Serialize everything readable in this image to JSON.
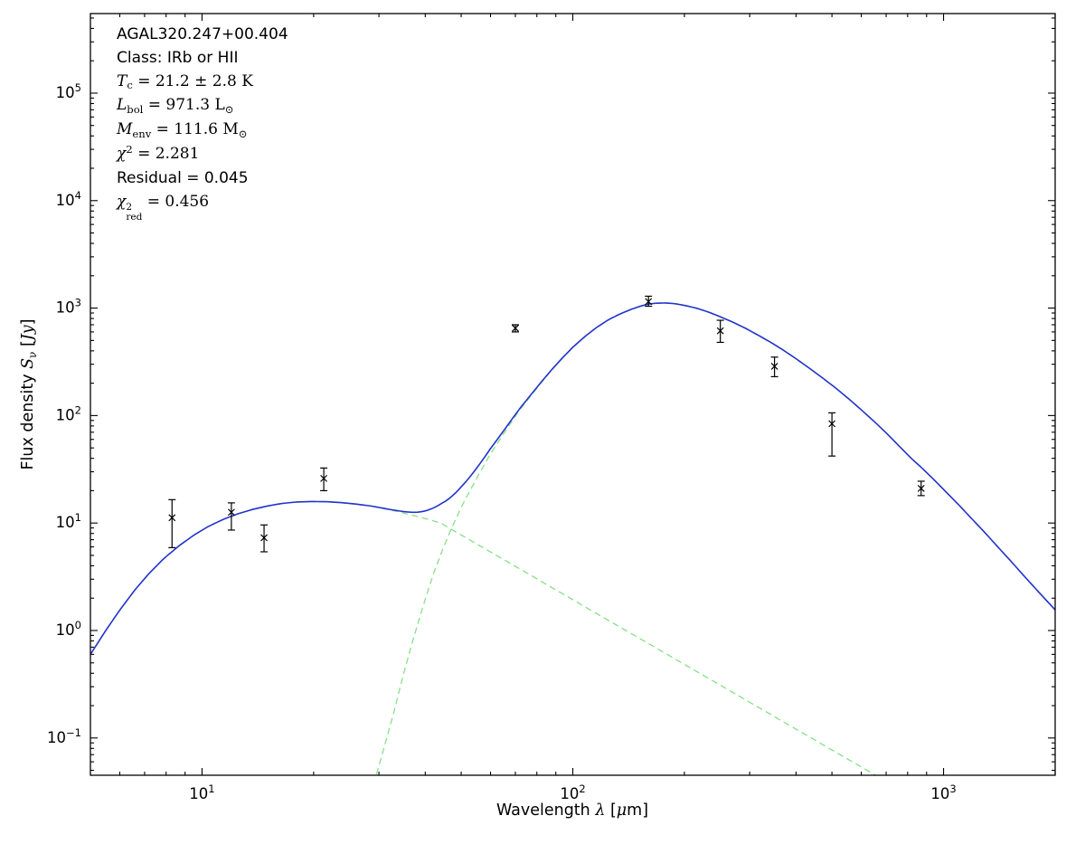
{
  "figure": {
    "background": "#ffffff",
    "frame_color": "#000000"
  },
  "colors": {
    "total_model": "#2233cc",
    "component_model": "#87e087",
    "data_points": "#000000",
    "tick_color": "#000000"
  },
  "annotation": {
    "lines": [
      {
        "name": "source-name",
        "segments": [
          {
            "t": "AGAL320.247+00.404",
            "c": "n"
          }
        ]
      },
      {
        "name": "source-class",
        "segments": [
          {
            "t": "Class: IRb or HII",
            "c": "n"
          }
        ]
      },
      {
        "name": "dust-temperature",
        "segments": [
          {
            "t": "T",
            "c": "i"
          },
          {
            "t": "c",
            "c": "sub"
          },
          {
            "t": " = 21.2 ± 2.8 K",
            "c": "r"
          }
        ]
      },
      {
        "name": "bolometric-luminosity",
        "segments": [
          {
            "t": "L",
            "c": "i"
          },
          {
            "t": "bol",
            "c": "sub"
          },
          {
            "t": " = 971.3 L",
            "c": "r"
          },
          {
            "t": "⊙",
            "c": "sub"
          }
        ]
      },
      {
        "name": "envelope-mass",
        "segments": [
          {
            "t": "M",
            "c": "i"
          },
          {
            "t": "env",
            "c": "sub"
          },
          {
            "t": " = 111.6 M",
            "c": "r"
          },
          {
            "t": "⊙",
            "c": "sub"
          }
        ]
      },
      {
        "name": "chi-squared",
        "segments": [
          {
            "t": "χ",
            "c": "i"
          },
          {
            "t": "2",
            "c": "sup"
          },
          {
            "t": " = 2.281",
            "c": "r"
          }
        ]
      },
      {
        "name": "residual",
        "segments": [
          {
            "t": "Residual = 0.045",
            "c": "n"
          }
        ]
      },
      {
        "name": "chi-squared-reduced",
        "segments": [
          {
            "t": "χ",
            "c": "i"
          },
          {
            "t": "2|red",
            "c": "stack"
          },
          {
            "t": " = 0.456",
            "c": "r"
          }
        ]
      }
    ]
  },
  "chart_data": {
    "type": "line",
    "title": "",
    "xlabel": "Wavelength λ [μm]",
    "ylabel": "Flux density Sν [Jy]",
    "xlabel_segments": [
      {
        "t": "Wavelength ",
        "c": "n"
      },
      {
        "t": "λ",
        "c": "i"
      },
      {
        "t": " [",
        "c": "n"
      },
      {
        "t": "μ",
        "c": "i"
      },
      {
        "t": "m]",
        "c": "n"
      }
    ],
    "ylabel_segments": [
      {
        "t": "Flux density ",
        "c": "n"
      },
      {
        "t": "S",
        "c": "i"
      },
      {
        "t": "ν",
        "c": "sub"
      },
      {
        "t": " [",
        "c": "n"
      },
      {
        "t": "Jy",
        "c": "i"
      },
      {
        "t": "]",
        "c": "n"
      }
    ],
    "xscale": "log",
    "yscale": "log",
    "xlim": [
      5,
      2000
    ],
    "ylim": [
      0.045,
      550000
    ],
    "x_tick_exponents": [
      1,
      2,
      3
    ],
    "y_tick_exponents": [
      -1,
      0,
      1,
      2,
      3,
      4,
      5
    ],
    "grid": false,
    "legend": null,
    "series": [
      {
        "name": "warm-component-model",
        "role": "component",
        "style": "dashed",
        "color": "#87e087",
        "x": [
          5,
          5.5,
          6,
          6.6,
          7.2,
          7.9,
          8.7,
          9.5,
          10.4,
          11.4,
          12.5,
          13.7,
          15,
          16.4,
          18,
          19.7,
          21.6,
          23.7,
          26,
          28.5,
          31,
          34,
          37,
          40.5,
          44,
          48,
          53,
          58,
          64,
          70,
          77,
          85,
          93,
          102,
          112,
          123,
          135,
          148,
          163,
          180,
          200,
          222,
          246,
          272,
          300,
          330,
          365,
          405,
          450,
          500,
          555,
          615,
          660
        ],
        "y": [
          0.6,
          1.0,
          1.55,
          2.4,
          3.4,
          4.7,
          6.2,
          7.7,
          9.3,
          10.8,
          12.2,
          13.4,
          14.4,
          15.2,
          15.7,
          15.85,
          15.8,
          15.5,
          15.0,
          14.4,
          13.6,
          12.7,
          11.8,
          10.9,
          10.0,
          8.4,
          6.9,
          5.75,
          4.73,
          3.95,
          3.27,
          2.68,
          2.24,
          1.86,
          1.54,
          1.28,
          1.06,
          0.884,
          0.729,
          0.597,
          0.484,
          0.393,
          0.32,
          0.262,
          0.215,
          0.178,
          0.145,
          0.118,
          0.0956,
          0.0774,
          0.0628,
          0.0512,
          0.0445
        ]
      },
      {
        "name": "cold-component-model",
        "role": "component",
        "style": "dashed",
        "color": "#87e087",
        "x": [
          28.5,
          30,
          31.5,
          33,
          35,
          37,
          39.5,
          42,
          44.5,
          47,
          50,
          53,
          56,
          60,
          64,
          68,
          72,
          77,
          82,
          88,
          94,
          100,
          108,
          116,
          125,
          134,
          144,
          152,
          160,
          168,
          178,
          188,
          200,
          215,
          232,
          250,
          270,
          292,
          316,
          342,
          370,
          400,
          435,
          470,
          510,
          555,
          600,
          650,
          700,
          755,
          815,
          870,
          940,
          1015,
          1100,
          1190,
          1290,
          1400,
          1520,
          1650,
          1800,
          2000
        ],
        "y": [
          0.03,
          0.055,
          0.1,
          0.18,
          0.4,
          0.8,
          1.7,
          3.3,
          5.6,
          8.8,
          14,
          20.5,
          29,
          44,
          62,
          85,
          113,
          152,
          200,
          268,
          345,
          430,
          545,
          660,
          780,
          880,
          975,
          1040,
          1090,
          1110,
          1115,
          1100,
          1060,
          1000,
          920,
          830,
          740,
          650,
          560,
          480,
          405,
          338,
          275,
          226,
          182,
          143,
          113,
          88,
          69,
          53,
          40.5,
          33,
          25.5,
          19.5,
          14.7,
          11.0,
          8.2,
          6.0,
          4.4,
          3.2,
          2.3,
          1.55
        ]
      },
      {
        "name": "total-model",
        "role": "sum",
        "style": "solid",
        "color": "#2233cc"
      }
    ],
    "points": [
      {
        "x": 8.3,
        "y": 11.2,
        "ylo": 5.9,
        "yhi": 16.5
      },
      {
        "x": 12.0,
        "y": 12.6,
        "ylo": 8.6,
        "yhi": 15.4
      },
      {
        "x": 14.7,
        "y": 7.3,
        "ylo": 5.4,
        "yhi": 9.6
      },
      {
        "x": 21.3,
        "y": 26.0,
        "ylo": 20.0,
        "yhi": 32.5
      },
      {
        "x": 70,
        "y": 650,
        "ylo": 600,
        "yhi": 700
      },
      {
        "x": 160,
        "y": 1150,
        "ylo": 1040,
        "yhi": 1290
      },
      {
        "x": 250,
        "y": 615,
        "ylo": 480,
        "yhi": 770
      },
      {
        "x": 350,
        "y": 287,
        "ylo": 230,
        "yhi": 350
      },
      {
        "x": 500,
        "y": 84,
        "ylo": 42,
        "yhi": 106
      },
      {
        "x": 870,
        "y": 21,
        "ylo": 18,
        "yhi": 24.5
      }
    ]
  }
}
